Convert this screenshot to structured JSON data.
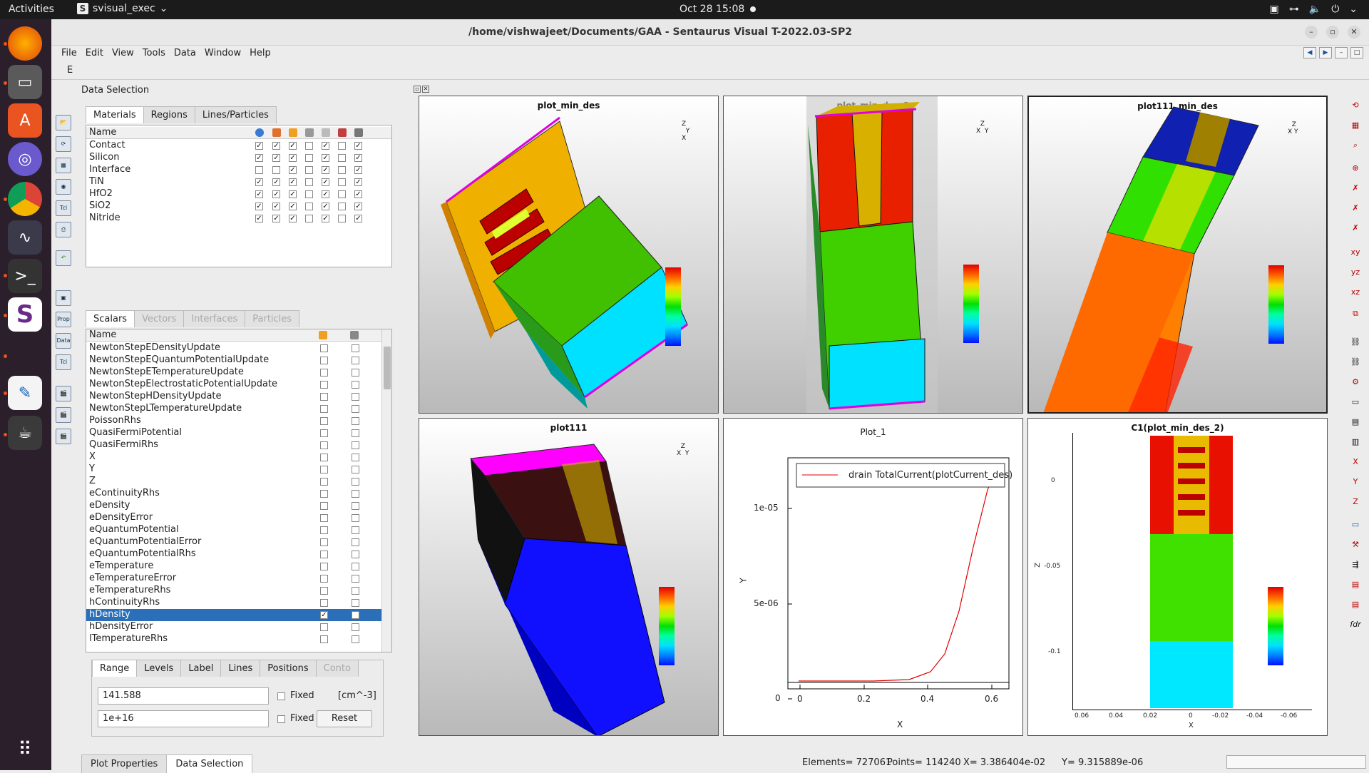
{
  "topbar": {
    "activities": "Activities",
    "app": "svisual_exec",
    "clock": "Oct 28  15:08"
  },
  "window": {
    "title": "/home/vishwajeet/Documents/GAA - Sentaurus Visual T-2022.03-SP2"
  },
  "menu": [
    "File",
    "Edit",
    "View",
    "Tools",
    "Data",
    "Window",
    "Help"
  ],
  "toolrow_label": "E",
  "panel": {
    "title": "Data Selection",
    "mat_tabs": [
      "Materials",
      "Regions",
      "Lines/Particles"
    ],
    "mat_header": "Name",
    "materials": [
      {
        "name": "Contact",
        "c": [
          1,
          1,
          1,
          0,
          1,
          0,
          1
        ]
      },
      {
        "name": "Silicon",
        "c": [
          1,
          1,
          1,
          0,
          1,
          0,
          1
        ]
      },
      {
        "name": "Interface",
        "c": [
          0,
          0,
          1,
          0,
          1,
          0,
          1
        ]
      },
      {
        "name": "TiN",
        "c": [
          1,
          1,
          1,
          0,
          1,
          0,
          1
        ]
      },
      {
        "name": "HfO2",
        "c": [
          1,
          1,
          1,
          0,
          1,
          0,
          1
        ]
      },
      {
        "name": "SiO2",
        "c": [
          1,
          1,
          1,
          0,
          1,
          0,
          1
        ]
      },
      {
        "name": "Nitride",
        "c": [
          1,
          1,
          1,
          0,
          1,
          0,
          1
        ]
      }
    ],
    "sc_tabs": [
      "Scalars",
      "Vectors",
      "Interfaces",
      "Particles"
    ],
    "sc_header": "Name",
    "scalars": [
      "NewtonStepEDensityUpdate",
      "NewtonStepEQuantumPotentialUpdate",
      "NewtonStepETemperatureUpdate",
      "NewtonStepElectrostaticPotentialUpdate",
      "NewtonStepHDensityUpdate",
      "NewtonStepLTemperatureUpdate",
      "PoissonRhs",
      "QuasiFermiPotential",
      "QuasiFermiRhs",
      "X",
      "Y",
      "Z",
      "eContinuityRhs",
      "eDensity",
      "eDensityError",
      "eQuantumPotential",
      "eQuantumPotentialError",
      "eQuantumPotentialRhs",
      "eTemperature",
      "eTemperatureError",
      "eTemperatureRhs",
      "hContinuityRhs",
      "hDensity",
      "hDensityError",
      "lTemperatureRhs"
    ],
    "selected_scalar": "hDensity",
    "range_tabs": [
      "Range",
      "Levels",
      "Label",
      "Lines",
      "Positions",
      "Conto"
    ],
    "min_value": "141.588",
    "max_value": "1e+16",
    "fixed": "Fixed",
    "unit": "[cm^-3]",
    "reset": "Reset",
    "bottom_tabs": [
      "Plot Properties",
      "Data Selection"
    ]
  },
  "plots": {
    "p1": "plot_min_des",
    "p2": "plot_min_des_2",
    "p3": "plot111_min_des",
    "p4": "plot111",
    "p5": "Plot_1",
    "p6": "C1(plot_min_des_2)"
  },
  "xy": {
    "legend": "drain TotalCurrent(plotCurrent_des)",
    "xlabel": "X",
    "ylabel": "Y",
    "yticks": [
      "1e-05",
      "5e-06",
      "0"
    ],
    "xticks": [
      "0",
      "0.2",
      "0.4",
      "0.6"
    ]
  },
  "cut": {
    "xlabel": "X",
    "ylabel": "Z",
    "yticks": [
      "0",
      "-0.05",
      "-0.1"
    ],
    "xticks": [
      "0.06",
      "0.04",
      "0.02",
      "0",
      "-0.02",
      "-0.04",
      "-0.06"
    ]
  },
  "status": {
    "elements": "Elements= 727061",
    "points": "Points= 114240",
    "x": "X= 3.386404e-02",
    "y": "Y= 9.315889e-06"
  }
}
